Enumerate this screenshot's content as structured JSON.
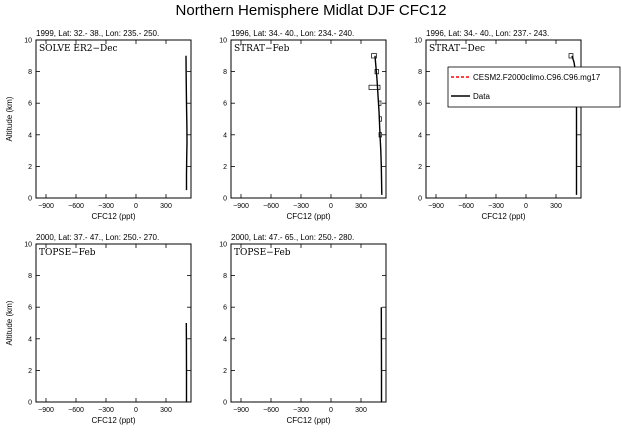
{
  "title": "Northern Hemisphere Midlat DJF CFC12",
  "legend": {
    "entries": [
      {
        "label": "CESM2.F2000climo.C96.C96.mg17",
        "color": "#ff0000",
        "dash": true
      },
      {
        "label": "Data",
        "color": "#000000",
        "dash": false
      }
    ]
  },
  "chart_data": [
    {
      "type": "line",
      "header": "1999, Lat: 32.- 38., Lon: 235.- 250.",
      "campaign": "SOLVE ER2−Dec",
      "xlabel": "CFC12 (ppt)",
      "ylabel": "Altitude (km)",
      "xlim": [
        -1000,
        550
      ],
      "ylim": [
        0,
        10
      ],
      "xticks": [
        -900,
        -600,
        -300,
        0,
        300
      ],
      "yticks": [
        0,
        2,
        4,
        6,
        8,
        10
      ],
      "series": [
        {
          "role": "data",
          "x": [
            505,
            505,
            507,
            510,
            509,
            505,
            502,
            500
          ],
          "y": [
            0.5,
            1.5,
            2.5,
            3.5,
            4.5,
            6.0,
            7.5,
            9.0
          ]
        }
      ],
      "boxes": []
    },
    {
      "type": "line",
      "header": "1996, Lat: 34.- 40., Lon: 234.- 240.",
      "campaign": "STRAT−Feb",
      "xlabel": "CFC12 (ppt)",
      "ylabel": "",
      "xlim": [
        -1000,
        550
      ],
      "ylim": [
        0,
        10
      ],
      "xticks": [
        -900,
        -600,
        -300,
        0,
        300
      ],
      "yticks": [
        0,
        2,
        4,
        6,
        8,
        10
      ],
      "series": [
        {
          "role": "data",
          "x": [
            508,
            506,
            503,
            498,
            490,
            480,
            460,
            440
          ],
          "y": [
            0.2,
            1.0,
            2.0,
            3.0,
            4.0,
            5.5,
            7.5,
            9.0
          ]
        }
      ],
      "boxes": [
        {
          "alt": 9.0,
          "xmin": 405,
          "xmax": 455
        },
        {
          "alt": 8.0,
          "xmin": 440,
          "xmax": 475
        },
        {
          "alt": 7.0,
          "xmin": 380,
          "xmax": 490
        },
        {
          "alt": 6.0,
          "xmin": 478,
          "xmax": 500
        },
        {
          "alt": 5.0,
          "xmin": 486,
          "xmax": 505
        },
        {
          "alt": 4.0,
          "xmin": 480,
          "xmax": 505
        }
      ]
    },
    {
      "type": "line",
      "header": "1996, Lat: 34.- 40., Lon: 237.- 243.",
      "campaign": "STRAT−Dec",
      "xlabel": "CFC12 (ppt)",
      "ylabel": "",
      "xlim": [
        -1000,
        550
      ],
      "ylim": [
        0,
        10
      ],
      "xticks": [
        -900,
        -600,
        -300,
        0,
        300
      ],
      "yticks": [
        0,
        2,
        4,
        6,
        8,
        10
      ],
      "series": [
        {
          "role": "data",
          "x": [
            505,
            505,
            505,
            505,
            503,
            495,
            480,
            460
          ],
          "y": [
            0.2,
            2.0,
            4.0,
            6.0,
            7.0,
            8.0,
            8.6,
            9.0
          ]
        }
      ],
      "boxes": [
        {
          "alt": 9.0,
          "xmin": 430,
          "xmax": 470
        },
        {
          "alt": 6.0,
          "xmin": 488,
          "xmax": 505
        }
      ]
    },
    {
      "type": "line",
      "header": "2000, Lat: 37.- 47., Lon: 250.- 270.",
      "campaign": "TOPSE−Feb",
      "xlabel": "CFC12 (ppt)",
      "ylabel": "Altitude (km)",
      "xlim": [
        -1000,
        550
      ],
      "ylim": [
        0,
        10
      ],
      "xticks": [
        -900,
        -600,
        -300,
        0,
        300
      ],
      "yticks": [
        0,
        2,
        4,
        6,
        8,
        10
      ],
      "series": [
        {
          "role": "data",
          "x": [
            505,
            505,
            504,
            503
          ],
          "y": [
            0.0,
            2.0,
            4.0,
            5.0
          ]
        }
      ],
      "boxes": []
    },
    {
      "type": "line",
      "header": "2000, Lat: 47.- 65., Lon: 250.- 280.",
      "campaign": "TOPSE−Feb",
      "xlabel": "CFC12 (ppt)",
      "ylabel": "",
      "xlim": [
        -1000,
        550
      ],
      "ylim": [
        0,
        10
      ],
      "xticks": [
        -900,
        -600,
        -300,
        0,
        300
      ],
      "yticks": [
        0,
        2,
        4,
        6,
        8,
        10
      ],
      "series": [
        {
          "role": "data",
          "x": [
            505,
            505,
            504,
            503
          ],
          "y": [
            0.0,
            2.0,
            4.0,
            6.0
          ]
        }
      ],
      "boxes": []
    }
  ]
}
